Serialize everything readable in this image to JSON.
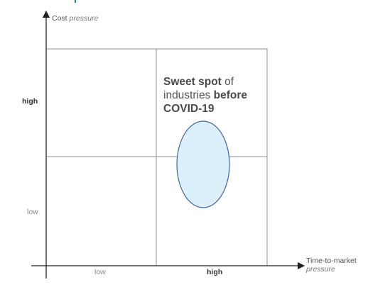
{
  "axes": {
    "y": {
      "title": "Cost",
      "title_emphasis": "pressure",
      "ticks": [
        {
          "label": "high",
          "bold": true
        },
        {
          "label": "low",
          "bold": false
        }
      ]
    },
    "x": {
      "title": "Time-to-market",
      "title_emphasis": "pressure",
      "ticks": [
        {
          "label": "low",
          "bold": false
        },
        {
          "label": "high",
          "bold": true
        }
      ]
    }
  },
  "annotation": {
    "part1_bold": "Sweet spot",
    "part2": " of industries ",
    "part3_bold": "before COVID-19"
  },
  "colors": {
    "ellipse_fill": "#dcf0fb",
    "ellipse_stroke": "#3a64a8",
    "grid": "#8c8c8c",
    "axis": "#222222",
    "accent": "#2f6fc1"
  }
}
